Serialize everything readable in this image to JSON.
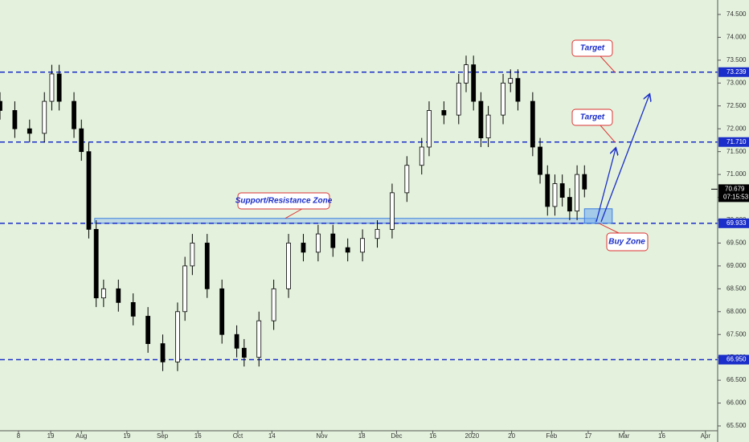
{
  "chart_data": {
    "type": "candlestick",
    "xlim": [
      0,
      194
    ],
    "xticks": [
      {
        "value": 5,
        "label": "8"
      },
      {
        "value": 13.7,
        "label": "19"
      },
      {
        "value": 22,
        "label": "Aug"
      },
      {
        "value": 34.3,
        "label": "19"
      },
      {
        "value": 43.9,
        "label": "Sep"
      },
      {
        "value": 53.5,
        "label": "16"
      },
      {
        "value": 64.3,
        "label": "Oct"
      },
      {
        "value": 73.5,
        "label": "14"
      },
      {
        "value": 87,
        "label": "Nov"
      },
      {
        "value": 97.8,
        "label": "18"
      },
      {
        "value": 107.2,
        "label": "Dec"
      },
      {
        "value": 117,
        "label": "16"
      },
      {
        "value": 127.6,
        "label": "2020"
      },
      {
        "value": 138.3,
        "label": "20"
      },
      {
        "value": 149.1,
        "label": "Feb"
      },
      {
        "value": 159,
        "label": "17"
      },
      {
        "value": 168.7,
        "label": "Mar"
      },
      {
        "value": 178.9,
        "label": "16"
      },
      {
        "value": 190.7,
        "label": "Apr"
      }
    ],
    "ylim": [
      65.4,
      74.8
    ],
    "yticks": [
      {
        "value": 65.5,
        "label": "65.500"
      },
      {
        "value": 66,
        "label": "66.000"
      },
      {
        "value": 66.5,
        "label": "66.500"
      },
      {
        "value": 67,
        "label": "67.000"
      },
      {
        "value": 67.5,
        "label": "67.500"
      },
      {
        "value": 68,
        "label": "68.000"
      },
      {
        "value": 68.5,
        "label": "68.500"
      },
      {
        "value": 69,
        "label": "69.000"
      },
      {
        "value": 69.5,
        "label": "69.500"
      },
      {
        "value": 70,
        "label": "70.000"
      },
      {
        "value": 70.5,
        "label": "70.500"
      },
      {
        "value": 71,
        "label": "71.000"
      },
      {
        "value": 71.5,
        "label": "71.500"
      },
      {
        "value": 72,
        "label": "72.000"
      },
      {
        "value": 72.5,
        "label": "72.500"
      },
      {
        "value": 73,
        "label": "73.000"
      },
      {
        "value": 73.5,
        "label": "73.500"
      },
      {
        "value": 74,
        "label": "74.000"
      },
      {
        "value": 74.5,
        "label": "74.500"
      }
    ],
    "candles": {
      "x": [
        0,
        4,
        8,
        12,
        14,
        16,
        20,
        22,
        24,
        26,
        28,
        32,
        36,
        40,
        44,
        48,
        50,
        52,
        56,
        60,
        64,
        66,
        70,
        74,
        78,
        82,
        86,
        90,
        94,
        98,
        102,
        106,
        110,
        114,
        116,
        120,
        124,
        126,
        128,
        130,
        132,
        136,
        138,
        140,
        144,
        146,
        148,
        150,
        152,
        154,
        156,
        158
      ],
      "open": [
        72.6,
        72.4,
        72.0,
        71.9,
        72.6,
        73.2,
        72.6,
        72.0,
        71.5,
        69.8,
        68.3,
        68.5,
        68.2,
        67.9,
        67.3,
        66.9,
        68.0,
        69.0,
        69.5,
        68.5,
        67.5,
        67.2,
        67.0,
        67.8,
        68.5,
        69.5,
        69.3,
        69.7,
        69.4,
        69.3,
        69.6,
        69.8,
        70.6,
        71.2,
        71.6,
        72.4,
        72.3,
        73.0,
        73.4,
        72.6,
        71.8,
        72.3,
        73.0,
        73.1,
        72.6,
        71.6,
        71.0,
        70.3,
        70.8,
        70.5,
        70.2,
        71.0
      ],
      "high": [
        72.8,
        72.6,
        72.2,
        72.8,
        73.4,
        73.4,
        72.8,
        72.2,
        71.7,
        70.0,
        68.7,
        68.7,
        68.4,
        68.1,
        67.5,
        68.2,
        69.2,
        69.7,
        69.7,
        68.7,
        67.7,
        67.4,
        68.0,
        68.7,
        69.7,
        69.7,
        69.9,
        69.9,
        69.6,
        69.8,
        70.0,
        70.8,
        71.4,
        71.8,
        72.6,
        72.6,
        73.2,
        73.6,
        73.6,
        72.8,
        72.5,
        73.2,
        73.3,
        73.3,
        72.8,
        71.8,
        71.2,
        71.0,
        71.0,
        70.7,
        71.2,
        71.2
      ],
      "low": [
        72.2,
        71.8,
        71.7,
        71.7,
        72.4,
        72.4,
        71.8,
        71.3,
        69.6,
        68.1,
        68.1,
        68.0,
        67.7,
        67.1,
        66.7,
        66.7,
        67.8,
        68.8,
        68.3,
        67.3,
        67.0,
        66.8,
        66.8,
        67.6,
        68.3,
        69.1,
        69.1,
        69.2,
        69.1,
        69.1,
        69.4,
        69.6,
        70.4,
        71.0,
        71.4,
        72.1,
        72.1,
        72.8,
        72.4,
        71.6,
        71.6,
        72.1,
        72.8,
        72.4,
        71.4,
        70.8,
        70.1,
        70.1,
        70.3,
        70.0,
        70.0,
        70.5
      ],
      "close": [
        72.4,
        72.0,
        71.9,
        72.6,
        73.2,
        72.6,
        72.0,
        71.5,
        69.8,
        68.3,
        68.5,
        68.2,
        67.9,
        67.3,
        66.9,
        68.0,
        69.0,
        69.5,
        68.5,
        67.5,
        67.2,
        67.0,
        67.8,
        68.5,
        69.5,
        69.3,
        69.7,
        69.4,
        69.3,
        69.6,
        69.8,
        70.6,
        71.2,
        71.6,
        72.4,
        72.3,
        73.0,
        73.4,
        72.6,
        71.8,
        72.3,
        73.0,
        73.1,
        72.6,
        71.6,
        71.0,
        70.3,
        70.8,
        70.5,
        70.2,
        71.0,
        70.68
      ]
    },
    "levels": [
      {
        "value": 73.239,
        "label": "73.239"
      },
      {
        "value": 71.71,
        "label": "71.710"
      },
      {
        "value": 69.933,
        "label": "69.933"
      },
      {
        "value": 66.95,
        "label": "66.950"
      }
    ],
    "last_price": {
      "value": 70.679,
      "label": "70.679"
    },
    "countdown": "07:15:53",
    "support_zone": {
      "label": "Support/Resistance Zone",
      "x": [
        25.6,
        161
      ],
      "range": [
        69.933,
        70.04
      ]
    },
    "buy_zone": {
      "label": "Buy Zone",
      "x": [
        158,
        165.5
      ],
      "range": [
        69.933,
        70.25
      ]
    },
    "targets": [
      "Target",
      "Target"
    ]
  }
}
